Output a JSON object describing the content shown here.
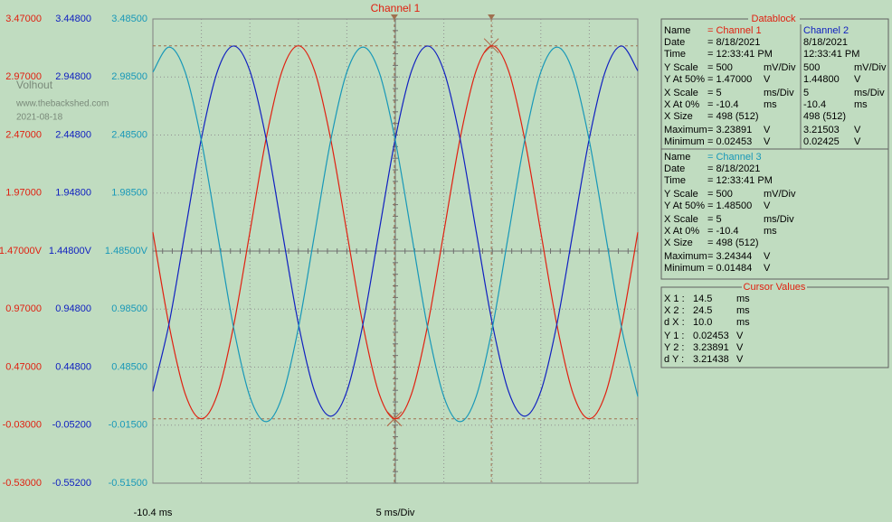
{
  "chart_data": {
    "type": "line",
    "title": "Channel 1",
    "x_label": "5 ms/Div",
    "xlim": [
      -10.4,
      39.6
    ],
    "xticks": [
      {
        "value": -10.4,
        "label": "-10.4 ms"
      }
    ],
    "grid": true,
    "x": [
      -10.4,
      -8.73,
      -7.07,
      -5.4,
      -3.73,
      -2.07,
      -0.4,
      1.27,
      2.93,
      4.6,
      6.27,
      7.93,
      9.6,
      11.27,
      12.93,
      14.6,
      16.27,
      17.93,
      19.6,
      21.27,
      22.93,
      24.6,
      26.27,
      27.93,
      29.6,
      31.27,
      32.93,
      34.6,
      36.27,
      37.93,
      39.6
    ],
    "series": [
      {
        "name": "Channel 1",
        "color": "#e02010",
        "ylim": [
          -0.53,
          3.47
        ],
        "yticks": [
          {
            "value": 3.47,
            "label": "3.47000"
          },
          {
            "value": 2.97,
            "label": "2.97000"
          },
          {
            "value": 2.47,
            "label": "2.47000"
          },
          {
            "value": 1.97,
            "label": "1.97000"
          },
          {
            "value": 1.47,
            "label": "1.47000V"
          },
          {
            "value": 0.97,
            "label": "0.97000"
          },
          {
            "value": 0.47,
            "label": "0.47000"
          },
          {
            "value": -0.03,
            "label": "-0.03000"
          },
          {
            "value": -0.53,
            "label": "-0.53000"
          }
        ],
        "values": [
          1.632,
          0.829,
          0.24,
          0.025,
          0.24,
          0.829,
          1.632,
          2.436,
          3.024,
          3.239,
          3.024,
          2.436,
          1.632,
          0.829,
          0.24,
          0.025,
          0.24,
          0.829,
          1.632,
          2.436,
          3.024,
          3.239,
          3.024,
          2.436,
          1.632,
          0.829,
          0.24,
          0.025,
          0.24,
          0.829,
          1.632
        ]
      },
      {
        "name": "Channel 2",
        "color": "#1020c0",
        "ylim": [
          -0.552,
          3.448
        ],
        "yticks": [
          {
            "value": 3.448,
            "label": "3.44800"
          },
          {
            "value": 2.948,
            "label": "2.94800"
          },
          {
            "value": 2.448,
            "label": "2.44800"
          },
          {
            "value": 1.948,
            "label": "1.94800"
          },
          {
            "value": 1.448,
            "label": "1.44800V"
          },
          {
            "value": 0.948,
            "label": "0.94800"
          },
          {
            "value": 0.448,
            "label": "0.44800"
          },
          {
            "value": -0.052,
            "label": "-0.05200"
          },
          {
            "value": -0.552,
            "label": "-0.55200"
          }
        ],
        "values": [
          0.239,
          0.823,
          1.62,
          2.418,
          3.001,
          3.215,
          3.001,
          2.418,
          1.62,
          0.823,
          0.239,
          0.025,
          0.239,
          0.823,
          1.62,
          2.418,
          3.001,
          3.215,
          3.001,
          2.418,
          1.62,
          0.823,
          0.239,
          0.025,
          0.239,
          0.823,
          1.62,
          2.418,
          3.001,
          3.215,
          3.001
        ]
      },
      {
        "name": "Channel 3",
        "color": "#1898b8",
        "ylim": [
          -0.515,
          3.485
        ],
        "yticks": [
          {
            "value": 3.485,
            "label": "3.48500"
          },
          {
            "value": 2.985,
            "label": "2.98500"
          },
          {
            "value": 2.485,
            "label": "2.48500"
          },
          {
            "value": 1.985,
            "label": "1.98500"
          },
          {
            "value": 1.485,
            "label": "1.48500V"
          },
          {
            "value": 0.985,
            "label": "0.98500"
          },
          {
            "value": 0.485,
            "label": "0.48500"
          },
          {
            "value": -0.015,
            "label": "-0.01500"
          },
          {
            "value": -0.515,
            "label": "-0.51500"
          }
        ],
        "values": [
          3.027,
          3.243,
          3.027,
          2.436,
          1.629,
          0.822,
          0.231,
          0.015,
          0.231,
          0.822,
          1.629,
          2.436,
          3.027,
          3.243,
          3.027,
          2.436,
          1.629,
          0.822,
          0.231,
          0.015,
          0.231,
          0.822,
          1.629,
          2.436,
          3.027,
          3.243,
          3.027,
          2.436,
          1.629,
          0.822,
          0.231
        ]
      }
    ]
  },
  "watermark": [
    "Volhout",
    "www.thebackshed.com",
    "2021-08-18"
  ],
  "datablock": {
    "title": "Datablock",
    "blocks": [
      {
        "rows": [
          [
            "Name",
            "= Channel 1"
          ],
          [
            "Date",
            "= 8/18/2021"
          ],
          [
            "Time",
            "= 12:33:41 PM"
          ],
          [
            "Y Scale",
            "= 500",
            "mV/Div"
          ],
          [
            "Y At 50%",
            "= 1.47000",
            "V"
          ],
          [
            "X Scale",
            "= 5",
            "ms/Div"
          ],
          [
            "X At 0%",
            "= -10.4",
            "ms"
          ],
          [
            "X Size",
            "= 498 (512)"
          ],
          [
            "Maximum",
            "= 3.23891",
            "V"
          ],
          [
            "Minimum",
            "= 0.02453",
            "V"
          ]
        ],
        "side": [
          [
            "Channel 2"
          ],
          [
            "8/18/2021"
          ],
          [
            "12:33:41 PM"
          ],
          [
            "500",
            "mV/Div"
          ],
          [
            "1.44800",
            "V"
          ],
          [
            "5",
            "ms/Div"
          ],
          [
            "-10.4",
            "ms"
          ],
          [
            "498 (512)"
          ],
          [
            "3.21503",
            "V"
          ],
          [
            "0.02425",
            "V"
          ]
        ]
      },
      {
        "rows": [
          [
            "Name",
            "= Channel 3"
          ],
          [
            "Date",
            "= 8/18/2021"
          ],
          [
            "Time",
            "= 12:33:41 PM"
          ],
          [
            "Y Scale",
            "= 500",
            "mV/Div"
          ],
          [
            "Y At 50%",
            "= 1.48500",
            "V"
          ],
          [
            "X Scale",
            "= 5",
            "ms/Div"
          ],
          [
            "X At 0%",
            "= -10.4",
            "ms"
          ],
          [
            "X Size",
            "= 498 (512)"
          ],
          [
            "Maximum",
            "= 3.24344",
            "V"
          ],
          [
            "Minimum",
            "= 0.01484",
            "V"
          ]
        ]
      }
    ]
  },
  "cursor_values": {
    "title": "Cursor Values",
    "rows": [
      [
        "X 1 :",
        "14.5",
        "ms"
      ],
      [
        "X 2 :",
        "24.5",
        "ms"
      ],
      [
        "d X :",
        "10.0",
        "ms"
      ],
      [
        "Y 1 :",
        "0.02453",
        "V"
      ],
      [
        "Y 2 :",
        "3.23891",
        "V"
      ],
      [
        "d Y :",
        "3.21438",
        "V"
      ]
    ]
  }
}
